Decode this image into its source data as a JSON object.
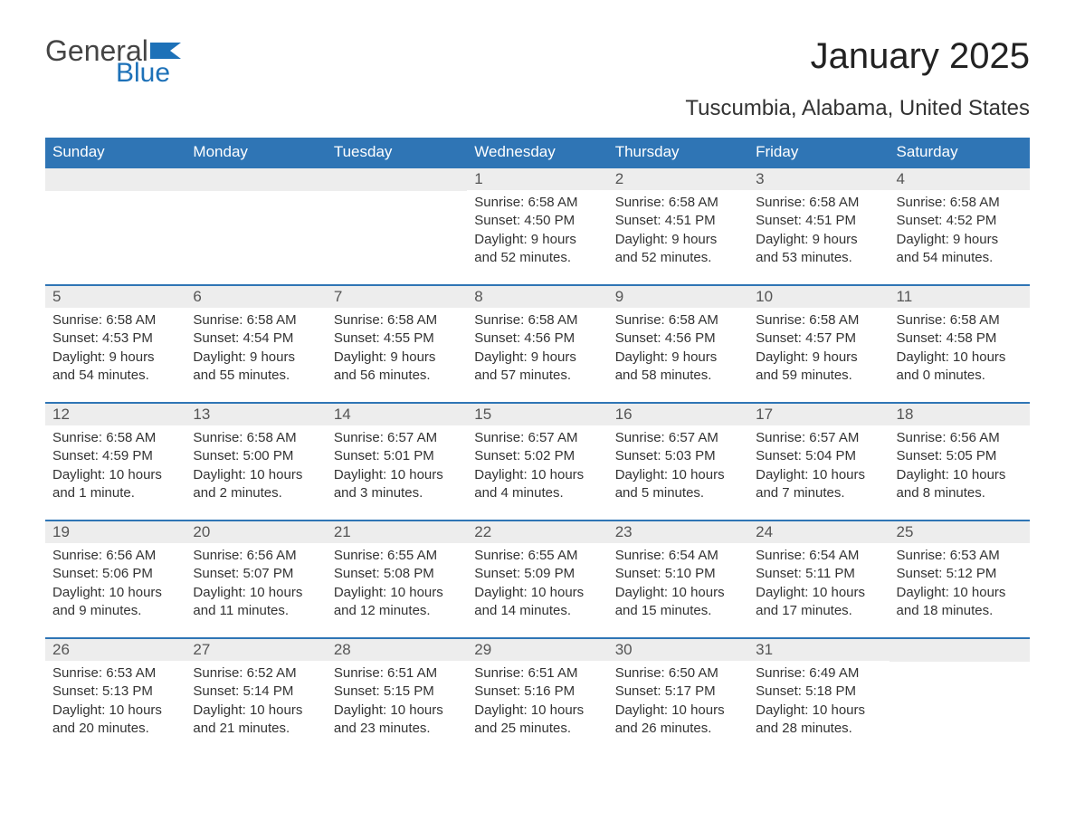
{
  "logo": {
    "text1": "General",
    "text2": "Blue",
    "flag_color": "#1d71b8"
  },
  "title": "January 2025",
  "subtitle": "Tuscumbia, Alabama, United States",
  "colors": {
    "header_bg": "#2f75b5",
    "header_text": "#ffffff",
    "daynum_bg": "#ededed",
    "daynum_text": "#555555",
    "body_text": "#333333",
    "week_border": "#2f75b5",
    "page_bg": "#ffffff"
  },
  "fonts": {
    "title_size": 40,
    "subtitle_size": 24,
    "header_size": 17,
    "body_size": 15
  },
  "weekdays": [
    "Sunday",
    "Monday",
    "Tuesday",
    "Wednesday",
    "Thursday",
    "Friday",
    "Saturday"
  ],
  "weeks": [
    [
      {
        "n": "",
        "lines": []
      },
      {
        "n": "",
        "lines": []
      },
      {
        "n": "",
        "lines": []
      },
      {
        "n": "1",
        "lines": [
          "Sunrise: 6:58 AM",
          "Sunset: 4:50 PM",
          "Daylight: 9 hours and 52 minutes."
        ]
      },
      {
        "n": "2",
        "lines": [
          "Sunrise: 6:58 AM",
          "Sunset: 4:51 PM",
          "Daylight: 9 hours and 52 minutes."
        ]
      },
      {
        "n": "3",
        "lines": [
          "Sunrise: 6:58 AM",
          "Sunset: 4:51 PM",
          "Daylight: 9 hours and 53 minutes."
        ]
      },
      {
        "n": "4",
        "lines": [
          "Sunrise: 6:58 AM",
          "Sunset: 4:52 PM",
          "Daylight: 9 hours and 54 minutes."
        ]
      }
    ],
    [
      {
        "n": "5",
        "lines": [
          "Sunrise: 6:58 AM",
          "Sunset: 4:53 PM",
          "Daylight: 9 hours and 54 minutes."
        ]
      },
      {
        "n": "6",
        "lines": [
          "Sunrise: 6:58 AM",
          "Sunset: 4:54 PM",
          "Daylight: 9 hours and 55 minutes."
        ]
      },
      {
        "n": "7",
        "lines": [
          "Sunrise: 6:58 AM",
          "Sunset: 4:55 PM",
          "Daylight: 9 hours and 56 minutes."
        ]
      },
      {
        "n": "8",
        "lines": [
          "Sunrise: 6:58 AM",
          "Sunset: 4:56 PM",
          "Daylight: 9 hours and 57 minutes."
        ]
      },
      {
        "n": "9",
        "lines": [
          "Sunrise: 6:58 AM",
          "Sunset: 4:56 PM",
          "Daylight: 9 hours and 58 minutes."
        ]
      },
      {
        "n": "10",
        "lines": [
          "Sunrise: 6:58 AM",
          "Sunset: 4:57 PM",
          "Daylight: 9 hours and 59 minutes."
        ]
      },
      {
        "n": "11",
        "lines": [
          "Sunrise: 6:58 AM",
          "Sunset: 4:58 PM",
          "Daylight: 10 hours and 0 minutes."
        ]
      }
    ],
    [
      {
        "n": "12",
        "lines": [
          "Sunrise: 6:58 AM",
          "Sunset: 4:59 PM",
          "Daylight: 10 hours and 1 minute."
        ]
      },
      {
        "n": "13",
        "lines": [
          "Sunrise: 6:58 AM",
          "Sunset: 5:00 PM",
          "Daylight: 10 hours and 2 minutes."
        ]
      },
      {
        "n": "14",
        "lines": [
          "Sunrise: 6:57 AM",
          "Sunset: 5:01 PM",
          "Daylight: 10 hours and 3 minutes."
        ]
      },
      {
        "n": "15",
        "lines": [
          "Sunrise: 6:57 AM",
          "Sunset: 5:02 PM",
          "Daylight: 10 hours and 4 minutes."
        ]
      },
      {
        "n": "16",
        "lines": [
          "Sunrise: 6:57 AM",
          "Sunset: 5:03 PM",
          "Daylight: 10 hours and 5 minutes."
        ]
      },
      {
        "n": "17",
        "lines": [
          "Sunrise: 6:57 AM",
          "Sunset: 5:04 PM",
          "Daylight: 10 hours and 7 minutes."
        ]
      },
      {
        "n": "18",
        "lines": [
          "Sunrise: 6:56 AM",
          "Sunset: 5:05 PM",
          "Daylight: 10 hours and 8 minutes."
        ]
      }
    ],
    [
      {
        "n": "19",
        "lines": [
          "Sunrise: 6:56 AM",
          "Sunset: 5:06 PM",
          "Daylight: 10 hours and 9 minutes."
        ]
      },
      {
        "n": "20",
        "lines": [
          "Sunrise: 6:56 AM",
          "Sunset: 5:07 PM",
          "Daylight: 10 hours and 11 minutes."
        ]
      },
      {
        "n": "21",
        "lines": [
          "Sunrise: 6:55 AM",
          "Sunset: 5:08 PM",
          "Daylight: 10 hours and 12 minutes."
        ]
      },
      {
        "n": "22",
        "lines": [
          "Sunrise: 6:55 AM",
          "Sunset: 5:09 PM",
          "Daylight: 10 hours and 14 minutes."
        ]
      },
      {
        "n": "23",
        "lines": [
          "Sunrise: 6:54 AM",
          "Sunset: 5:10 PM",
          "Daylight: 10 hours and 15 minutes."
        ]
      },
      {
        "n": "24",
        "lines": [
          "Sunrise: 6:54 AM",
          "Sunset: 5:11 PM",
          "Daylight: 10 hours and 17 minutes."
        ]
      },
      {
        "n": "25",
        "lines": [
          "Sunrise: 6:53 AM",
          "Sunset: 5:12 PM",
          "Daylight: 10 hours and 18 minutes."
        ]
      }
    ],
    [
      {
        "n": "26",
        "lines": [
          "Sunrise: 6:53 AM",
          "Sunset: 5:13 PM",
          "Daylight: 10 hours and 20 minutes."
        ]
      },
      {
        "n": "27",
        "lines": [
          "Sunrise: 6:52 AM",
          "Sunset: 5:14 PM",
          "Daylight: 10 hours and 21 minutes."
        ]
      },
      {
        "n": "28",
        "lines": [
          "Sunrise: 6:51 AM",
          "Sunset: 5:15 PM",
          "Daylight: 10 hours and 23 minutes."
        ]
      },
      {
        "n": "29",
        "lines": [
          "Sunrise: 6:51 AM",
          "Sunset: 5:16 PM",
          "Daylight: 10 hours and 25 minutes."
        ]
      },
      {
        "n": "30",
        "lines": [
          "Sunrise: 6:50 AM",
          "Sunset: 5:17 PM",
          "Daylight: 10 hours and 26 minutes."
        ]
      },
      {
        "n": "31",
        "lines": [
          "Sunrise: 6:49 AM",
          "Sunset: 5:18 PM",
          "Daylight: 10 hours and 28 minutes."
        ]
      },
      {
        "n": "",
        "lines": []
      }
    ]
  ]
}
